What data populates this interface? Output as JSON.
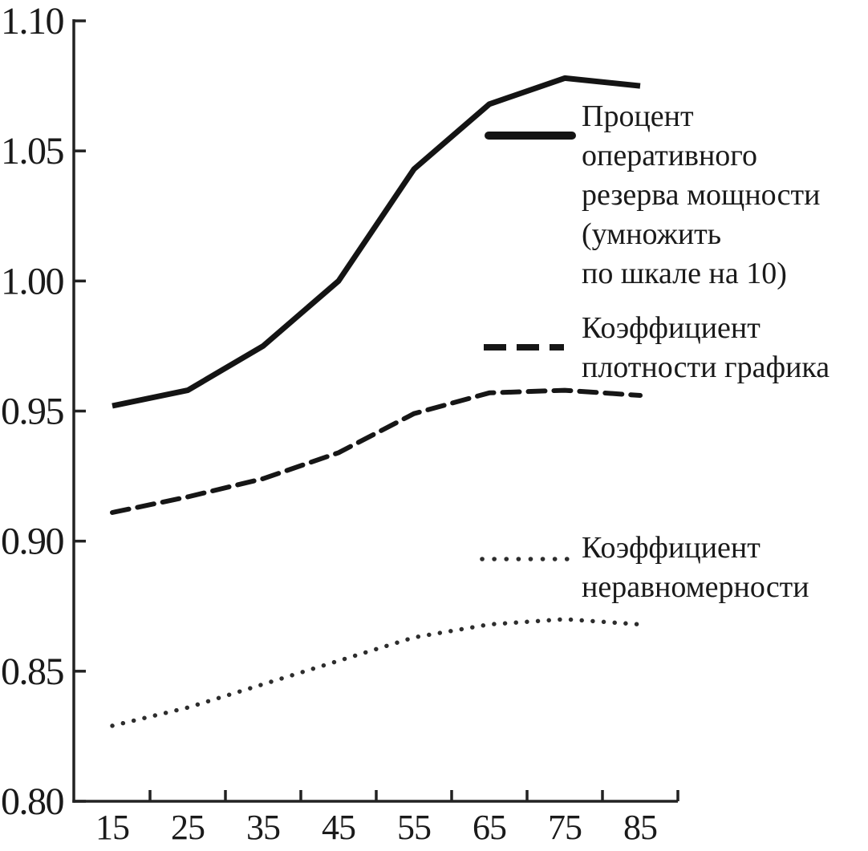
{
  "chart_data": {
    "type": "line",
    "title": "",
    "xlabel": "",
    "ylabel": "",
    "x": [
      15,
      25,
      35,
      45,
      55,
      65,
      75,
      85
    ],
    "xticklabels": [
      "15",
      "25",
      "35",
      "45",
      "55",
      "65",
      "75",
      "85"
    ],
    "yticks": [
      "0.80",
      "0.85",
      "0.90",
      "0.95",
      "1.00",
      "1.05",
      "1.10"
    ],
    "ylim": [
      0.8,
      1.1
    ],
    "ytick_step": 0.05,
    "grid": false,
    "legend_position": "right-inside",
    "series": [
      {
        "name": "Процент оперативного резерва мощности (умножить по шкале на 10)",
        "style": "solid",
        "values": [
          0.952,
          0.958,
          0.975,
          1.0,
          1.043,
          1.068,
          1.078,
          1.075
        ]
      },
      {
        "name": "Коэффициент плотности графика",
        "style": "dashed",
        "values": [
          0.911,
          0.917,
          0.924,
          0.934,
          0.949,
          0.957,
          0.958,
          0.956
        ]
      },
      {
        "name": "Коэффициент неравномерности",
        "style": "dotted",
        "values": [
          0.829,
          0.836,
          0.845,
          0.854,
          0.863,
          0.868,
          0.87,
          0.868
        ]
      }
    ]
  },
  "legend": {
    "entries": [
      {
        "style": "solid",
        "lines": [
          "Процент",
          "оперативного",
          "резерва мощности",
          "(умножить",
          "по шкале на 10)"
        ]
      },
      {
        "style": "dashed",
        "lines": [
          "Коэффициент",
          "плотности графика"
        ]
      },
      {
        "style": "dotted",
        "lines": [
          "Коэффициент",
          "неравномерности"
        ]
      }
    ]
  },
  "colors": {
    "line": "#141414",
    "dotted_line": "#2d2d2d",
    "axis": "#222222",
    "text": "#1a1a1a",
    "background": "#ffffff"
  }
}
